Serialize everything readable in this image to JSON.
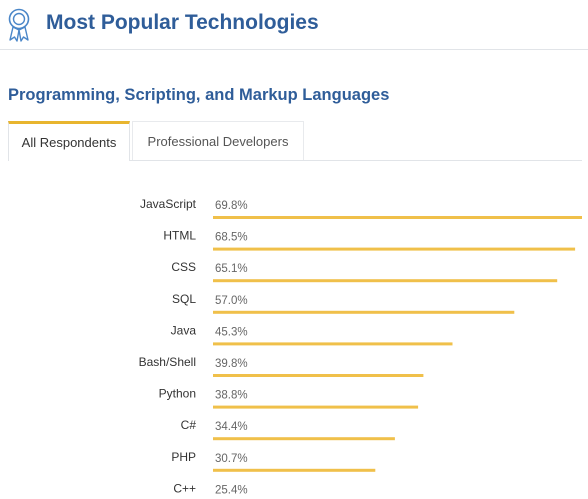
{
  "header": {
    "title": "Most Popular Technologies",
    "icon": "award-ribbon-icon",
    "accent_color": "#2f5d99"
  },
  "section": {
    "title": "Programming, Scripting, and Markup Languages"
  },
  "tabs": [
    {
      "label": "All Respondents",
      "active": true
    },
    {
      "label": "Professional Developers",
      "active": false
    }
  ],
  "chart_data": {
    "type": "bar",
    "orientation": "horizontal",
    "bar_color": "#f0c04a",
    "xlim": [
      0,
      69.8
    ],
    "categories": [
      "JavaScript",
      "HTML",
      "CSS",
      "SQL",
      "Java",
      "Bash/Shell",
      "Python",
      "C#",
      "PHP",
      "C++"
    ],
    "values": [
      69.8,
      68.5,
      65.1,
      57.0,
      45.3,
      39.8,
      38.8,
      34.4,
      30.7,
      25.4
    ],
    "value_labels": [
      "69.8%",
      "68.5%",
      "65.1%",
      "57.0%",
      "45.3%",
      "39.8%",
      "38.8%",
      "34.4%",
      "30.7%",
      "25.4%"
    ]
  }
}
